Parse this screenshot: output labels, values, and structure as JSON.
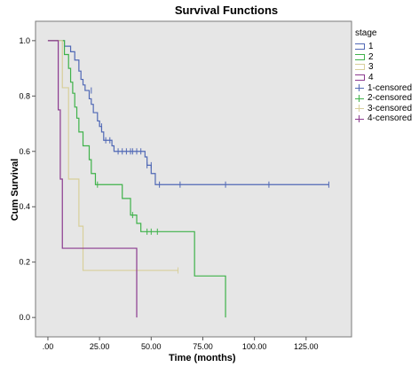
{
  "chart_data": {
    "type": "line",
    "title": "Survival Functions",
    "xlabel": "Time (months)",
    "ylabel": "Cum Survival",
    "xlim": [
      -6,
      147
    ],
    "ylim": [
      -0.07,
      1.07
    ],
    "x_ticks": [
      0,
      25,
      50,
      75,
      100,
      125
    ],
    "x_tick_labels": [
      ".00",
      "25.00",
      "50.00",
      "75.00",
      "100.00",
      "125.00"
    ],
    "y_ticks": [
      0,
      0.2,
      0.4,
      0.6,
      0.8,
      1.0
    ],
    "y_tick_labels": [
      "0.0",
      "0.2",
      "0.4",
      "0.6",
      "0.8",
      "1.0"
    ],
    "grid": false,
    "plot_background": "#e6e6e6",
    "legend_title": "stage",
    "legend_position": "right",
    "series": [
      {
        "name": "1",
        "color": "#5068b5",
        "steps": [
          [
            0,
            1.0
          ],
          [
            8,
            0.98
          ],
          [
            11,
            0.96
          ],
          [
            13,
            0.93
          ],
          [
            15,
            0.89
          ],
          [
            16,
            0.86
          ],
          [
            17,
            0.84
          ],
          [
            18,
            0.82
          ],
          [
            20,
            0.79
          ],
          [
            21,
            0.77
          ],
          [
            22,
            0.74
          ],
          [
            24,
            0.71
          ],
          [
            25,
            0.69
          ],
          [
            26,
            0.67
          ],
          [
            27,
            0.64
          ],
          [
            31,
            0.62
          ],
          [
            32,
            0.6
          ],
          [
            47,
            0.58
          ],
          [
            48,
            0.55
          ],
          [
            50,
            0.52
          ],
          [
            52,
            0.48
          ],
          [
            136,
            0.48
          ]
        ],
        "censored": [
          [
            21,
            0.82
          ],
          [
            25,
            0.7
          ],
          [
            26,
            0.69
          ],
          [
            28,
            0.64
          ],
          [
            30,
            0.64
          ],
          [
            34,
            0.6
          ],
          [
            36,
            0.6
          ],
          [
            38,
            0.6
          ],
          [
            40,
            0.6
          ],
          [
            41,
            0.6
          ],
          [
            43,
            0.6
          ],
          [
            45,
            0.6
          ],
          [
            48,
            0.55
          ],
          [
            50,
            0.55
          ],
          [
            54,
            0.48
          ],
          [
            64,
            0.48
          ],
          [
            86,
            0.48
          ],
          [
            107,
            0.48
          ],
          [
            136,
            0.48
          ]
        ]
      },
      {
        "name": "2",
        "color": "#3fb24a",
        "steps": [
          [
            0,
            1.0
          ],
          [
            8,
            0.95
          ],
          [
            10,
            0.9
          ],
          [
            11,
            0.85
          ],
          [
            12,
            0.81
          ],
          [
            13,
            0.76
          ],
          [
            14,
            0.72
          ],
          [
            15,
            0.67
          ],
          [
            17,
            0.62
          ],
          [
            20,
            0.57
          ],
          [
            21,
            0.52
          ],
          [
            23,
            0.48
          ],
          [
            36,
            0.43
          ],
          [
            40,
            0.37
          ],
          [
            43,
            0.34
          ],
          [
            45,
            0.31
          ],
          [
            71,
            0.15
          ],
          [
            78,
            0.15
          ],
          [
            86,
            0.0
          ]
        ],
        "censored": [
          [
            24,
            0.48
          ],
          [
            41,
            0.37
          ],
          [
            48,
            0.31
          ],
          [
            50,
            0.31
          ],
          [
            53,
            0.31
          ]
        ]
      },
      {
        "name": "3",
        "color": "#d8cf9a",
        "steps": [
          [
            0,
            1.0
          ],
          [
            7,
            0.83
          ],
          [
            10,
            0.5
          ],
          [
            15,
            0.33
          ],
          [
            17,
            0.17
          ],
          [
            63,
            0.17
          ]
        ],
        "censored": [
          [
            63,
            0.17
          ]
        ]
      },
      {
        "name": "4",
        "color": "#8b3a8f",
        "steps": [
          [
            0,
            1.0
          ],
          [
            5,
            0.75
          ],
          [
            6,
            0.5
          ],
          [
            7,
            0.25
          ],
          [
            43,
            0.0
          ]
        ],
        "censored": []
      }
    ],
    "legend_entries": [
      "1",
      "2",
      "3",
      "4",
      "1-censored",
      "2-censored",
      "3-censored",
      "4-censored"
    ]
  }
}
